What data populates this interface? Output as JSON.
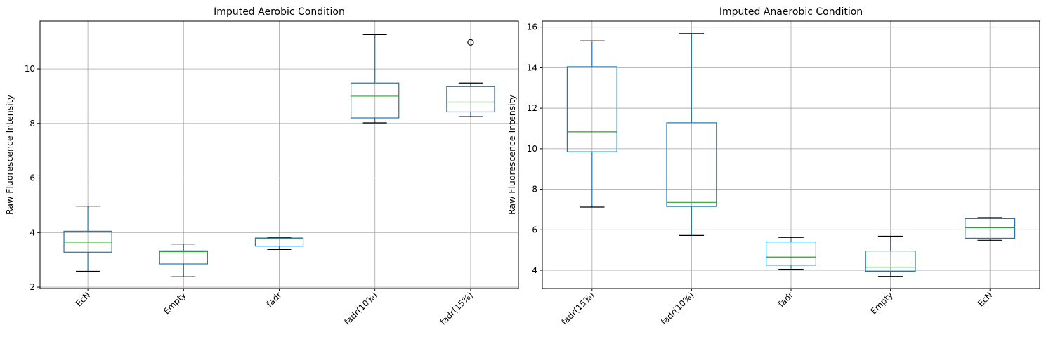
{
  "chart_data": [
    {
      "type": "box",
      "title": "Imputed Aerobic Condition",
      "xlabel": "",
      "ylabel": "Raw Fluorescence Intensity",
      "ylim": [
        1.95,
        11.75
      ],
      "yticks": [
        2,
        4,
        6,
        8,
        10
      ],
      "grid": true,
      "categories": [
        "EcN",
        "Empty",
        "fadr",
        "fadr(10%)",
        "fadr(15%)"
      ],
      "boxes": [
        {
          "whisker_low": 2.58,
          "q1": 3.28,
          "median": 3.65,
          "q3": 4.05,
          "whisker_high": 4.97,
          "fliers": []
        },
        {
          "whisker_low": 2.38,
          "q1": 2.85,
          "median": 3.3,
          "q3": 3.33,
          "whisker_high": 3.58,
          "fliers": []
        },
        {
          "whisker_low": 3.38,
          "q1": 3.5,
          "median": 3.78,
          "q3": 3.8,
          "whisker_high": 3.82,
          "fliers": []
        },
        {
          "whisker_low": 8.02,
          "q1": 8.2,
          "median": 9.0,
          "q3": 9.48,
          "whisker_high": 11.25,
          "fliers": []
        },
        {
          "whisker_low": 8.25,
          "q1": 8.42,
          "median": 8.78,
          "q3": 9.35,
          "whisker_high": 9.48,
          "fliers": [
            10.97
          ]
        }
      ]
    },
    {
      "type": "box",
      "title": "Imputed Anaerobic Condition",
      "xlabel": "",
      "ylabel": "Raw Fluorescence Intensity",
      "ylim": [
        3.1,
        16.3
      ],
      "yticks": [
        4,
        6,
        8,
        10,
        12,
        14,
        16
      ],
      "grid": true,
      "categories": [
        "fadr(15%)",
        "fadr(10%)",
        "fadr",
        "Empty",
        "EcN"
      ],
      "boxes": [
        {
          "whisker_low": 7.12,
          "q1": 9.85,
          "median": 10.83,
          "q3": 14.05,
          "whisker_high": 15.32,
          "fliers": []
        },
        {
          "whisker_low": 5.72,
          "q1": 7.15,
          "median": 7.35,
          "q3": 11.28,
          "whisker_high": 15.68,
          "fliers": []
        },
        {
          "whisker_low": 4.05,
          "q1": 4.25,
          "median": 4.65,
          "q3": 5.4,
          "whisker_high": 5.62,
          "fliers": []
        },
        {
          "whisker_low": 3.7,
          "q1": 3.95,
          "median": 4.15,
          "q3": 4.95,
          "whisker_high": 5.68,
          "fliers": []
        },
        {
          "whisker_low": 5.48,
          "q1": 5.58,
          "median": 6.1,
          "q3": 6.55,
          "whisker_high": 6.6,
          "fliers": []
        }
      ]
    }
  ]
}
